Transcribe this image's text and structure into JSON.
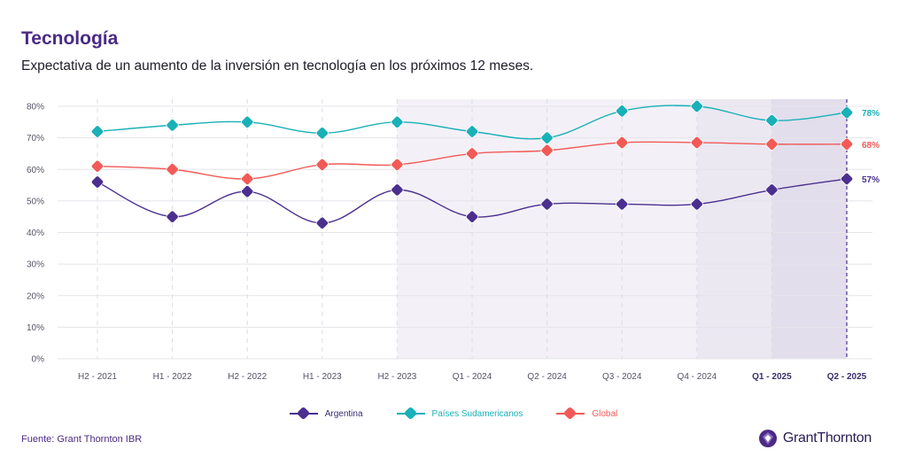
{
  "header": {
    "title": "Tecnología",
    "subtitle": "Expectativa de un aumento de la inversión en tecnología en los próximos 12 meses."
  },
  "footer": {
    "source": "Fuente: Grant Thornton IBR",
    "logo_text": "GrantThornton"
  },
  "colors": {
    "argentina": "#4b2f8f",
    "sudamericanos": "#1ab0b8",
    "global": "#f25a57",
    "shade_light": "#f3f1f7",
    "shade_mid": "#ebe8f2",
    "shade_dark": "#e2deec",
    "grid": "#e4e4ea",
    "vgrid": "#dcdce6"
  },
  "chart_data": {
    "type": "line",
    "x": [
      "H2 - 2021",
      "H1 - 2022",
      "H2 - 2022",
      "H1 - 2023",
      "H2 - 2023",
      "Q1 - 2024",
      "Q2 - 2024",
      "Q3 - 2024",
      "Q4 - 2024",
      "Q1 - 2025",
      "Q2 - 2025"
    ],
    "bold_categories": [
      "Q1 - 2025",
      "Q2 - 2025"
    ],
    "series": [
      {
        "name": "Argentina",
        "key": "argentina",
        "values": [
          56,
          45,
          53,
          43,
          53.5,
          45,
          49,
          49,
          49,
          53.5,
          57
        ],
        "end_label": "57%"
      },
      {
        "name": "Países Sudamericanos",
        "key": "sudamericanos",
        "values": [
          72,
          74,
          75,
          71.5,
          75,
          72,
          70,
          78.5,
          80,
          75.5,
          78
        ],
        "end_label": "78%"
      },
      {
        "name": "Global",
        "key": "global",
        "values": [
          61,
          60,
          57,
          61.5,
          61.5,
          65,
          66,
          68.5,
          68.5,
          68,
          68
        ],
        "end_label": "68%"
      }
    ],
    "y_ticks": [
      "0%",
      "10%",
      "20%",
      "30%",
      "40%",
      "50%",
      "60%",
      "70%",
      "80%"
    ],
    "ylim": [
      0,
      80
    ],
    "shaded_periods": [
      {
        "from": "H2 - 2023",
        "to": "Q4 - 2024",
        "tone": "light"
      },
      {
        "from": "Q4 - 2024",
        "to": "Q1 - 2025",
        "tone": "mid"
      },
      {
        "from": "Q1 - 2025",
        "to": "Q2 - 2025",
        "tone": "dark"
      }
    ],
    "grid": true,
    "legend_position": "bottom-center"
  }
}
